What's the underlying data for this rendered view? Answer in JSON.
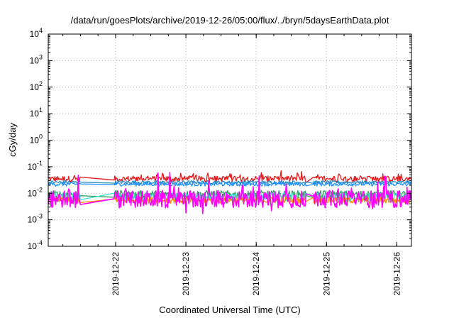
{
  "chart_data": {
    "type": "line",
    "title": "/data/run/goesPlots/archive/2019-12-26/05:00/flux/../bryn/5daysEarthData.plot",
    "xlabel": "Coordinated Universal Time (UTC)",
    "ylabel": "cGy/day",
    "yscale": "log",
    "ylim": [
      0.0001,
      10000
    ],
    "y_ticks": [
      {
        "value": 0.0001,
        "mant": "10",
        "exp": "-4"
      },
      {
        "value": 0.001,
        "mant": "10",
        "exp": "-3"
      },
      {
        "value": 0.01,
        "mant": "10",
        "exp": "-2"
      },
      {
        "value": 0.1,
        "mant": "10",
        "exp": "-1"
      },
      {
        "value": 1,
        "mant": "10",
        "exp": "0"
      },
      {
        "value": 10,
        "mant": "10",
        "exp": "1"
      },
      {
        "value": 100,
        "mant": "10",
        "exp": "2"
      },
      {
        "value": 1000,
        "mant": "10",
        "exp": "3"
      },
      {
        "value": 10000,
        "mant": "10",
        "exp": "4"
      }
    ],
    "xlim": [
      "2019-12-21T01:00",
      "2019-12-26T05:00"
    ],
    "x_ticks": [
      {
        "label": "2019-12-22",
        "t": "2019-12-22T00:00"
      },
      {
        "label": "2019-12-23",
        "t": "2019-12-23T00:00"
      },
      {
        "label": "2019-12-24",
        "t": "2019-12-24T00:00"
      },
      {
        "label": "2019-12-25",
        "t": "2019-12-25T00:00"
      },
      {
        "label": "2019-12-26",
        "t": "2019-12-26T00:00"
      }
    ],
    "grid": true,
    "gaps": [
      [
        "2019-12-21T12:00",
        "2019-12-21T23:30"
      ],
      [
        "2019-12-24T17:00",
        "2019-12-24T19:30"
      ]
    ],
    "series": [
      {
        "color": "#e41a1c",
        "values_ref": "upper",
        "level": 0.035,
        "spread": 0.18,
        "spiky": true
      },
      {
        "color": "#2b8cbe",
        "values_ref": "upper",
        "level": 0.026,
        "spread": 0.1,
        "spiky": false
      },
      {
        "color": "#1e90ff",
        "values_ref": "upper",
        "level": 0.022,
        "spread": 0.12,
        "spiky": false
      },
      {
        "color": "#2ca25f",
        "values_ref": "lower",
        "level": 0.009,
        "spread": 0.25,
        "spiky": false
      },
      {
        "color": "#40e0d0",
        "values_ref": "lower",
        "level": 0.007,
        "spread": 0.28,
        "spiky": false
      },
      {
        "color": "#ff8c00",
        "values_ref": "lower",
        "level": 0.0055,
        "spread": 0.2,
        "spiky": false
      },
      {
        "color": "#ff00ff",
        "values_ref": "lower",
        "level": 0.006,
        "spread": 0.55,
        "spiky": true
      }
    ]
  }
}
